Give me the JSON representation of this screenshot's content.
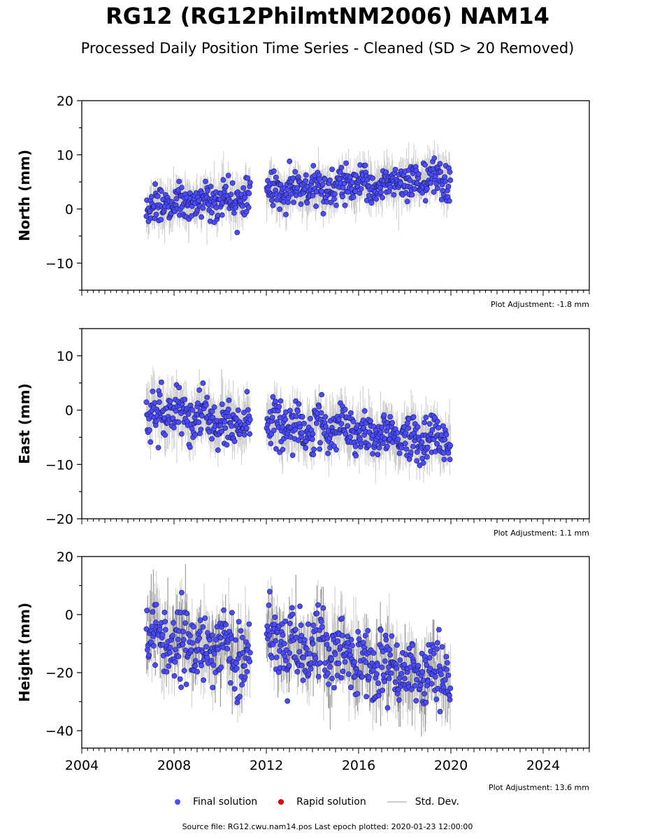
{
  "title": "RG12 (RG12PhilmtNM2006) NAM14",
  "subtitle": "Processed Daily Position Time Series - Cleaned (SD > 20 Removed)",
  "legend": {
    "final": "Final solution",
    "rapid": "Rapid solution",
    "std": "Std. Dev."
  },
  "footer": "Source file: RG12.cwu.nam14.pos  Last epoch plotted: 2020-01-23 12:00:00",
  "colors": {
    "final": "#4b4bff",
    "rapid": "#e00000",
    "std": "#cccccc"
  },
  "chart_data": [
    {
      "type": "scatter",
      "ylabel": "North (mm)",
      "xlim": [
        2004,
        2026
      ],
      "ylim": [
        -15,
        20
      ],
      "x_ticks": [
        "2004",
        "2008",
        "2012",
        "2016",
        "2020",
        "2024"
      ],
      "y_ticks": [
        "20",
        "10",
        "0",
        "−10"
      ],
      "y_tick_values": [
        20,
        10,
        0,
        -10
      ],
      "x_tick_labels_shown": false,
      "adjustment": "Plot Adjustment: -1.8 mm",
      "series": [
        {
          "x": [
            2006.8,
            2007.3,
            2007.8,
            2008.3,
            2008.8,
            2009.3,
            2009.8,
            2010.3,
            2010.8,
            2011.3
          ],
          "y": [
            0.0,
            0.5,
            0.8,
            1.0,
            1.2,
            1.5,
            1.8,
            2.0,
            2.3,
            2.5
          ]
        },
        {
          "x": [
            2012.0,
            2012.5,
            2013.0,
            2013.5,
            2014.0,
            2014.5,
            2015.0,
            2015.5,
            2016.0,
            2016.5,
            2017.0,
            2017.5,
            2018.0,
            2018.5,
            2019.0,
            2019.5,
            2020.0
          ],
          "y": [
            2.8,
            3.0,
            3.2,
            3.4,
            3.6,
            3.8,
            4.0,
            4.2,
            4.3,
            4.5,
            4.6,
            4.8,
            5.0,
            5.2,
            5.3,
            5.5,
            5.6
          ]
        }
      ]
    },
    {
      "type": "scatter",
      "ylabel": "East (mm)",
      "xlim": [
        2004,
        2026
      ],
      "ylim": [
        -20,
        15
      ],
      "x_ticks": [
        "2004",
        "2008",
        "2012",
        "2016",
        "2020",
        "2024"
      ],
      "y_ticks": [
        "10",
        "0",
        "−10",
        "−20"
      ],
      "y_tick_values": [
        10,
        0,
        -10,
        -20
      ],
      "x_tick_labels_shown": false,
      "adjustment": "Plot Adjustment: 1.1 mm",
      "series": [
        {
          "x": [
            2006.8,
            2007.3,
            2007.8,
            2008.3,
            2008.8,
            2009.3,
            2009.8,
            2010.3,
            2010.8,
            2011.3
          ],
          "y": [
            0.0,
            -0.3,
            -0.6,
            -0.9,
            -1.2,
            -1.5,
            -1.8,
            -2.1,
            -2.4,
            -2.7
          ]
        },
        {
          "x": [
            2012.0,
            2012.5,
            2013.0,
            2013.5,
            2014.0,
            2014.5,
            2015.0,
            2015.5,
            2016.0,
            2016.5,
            2017.0,
            2017.5,
            2018.0,
            2018.5,
            2019.0,
            2019.5,
            2020.0
          ],
          "y": [
            -2.5,
            -2.8,
            -3.0,
            -3.2,
            -3.3,
            -3.5,
            -3.6,
            -3.8,
            -4.0,
            -4.2,
            -4.4,
            -4.6,
            -4.8,
            -5.0,
            -5.1,
            -5.3,
            -5.4
          ]
        }
      ]
    },
    {
      "type": "scatter",
      "ylabel": "Height (mm)",
      "xlim": [
        2004,
        2026
      ],
      "ylim": [
        -46,
        20
      ],
      "x_ticks": [
        "2004",
        "2008",
        "2012",
        "2016",
        "2020",
        "2024"
      ],
      "y_ticks": [
        "20",
        "0",
        "−20",
        "−40"
      ],
      "y_tick_values": [
        20,
        0,
        -20,
        -40
      ],
      "x_tick_labels_shown": true,
      "adjustment": "Plot Adjustment: 13.6 mm",
      "series": [
        {
          "x": [
            2006.8,
            2007.3,
            2007.8,
            2008.3,
            2008.8,
            2009.3,
            2009.8,
            2010.3,
            2010.8,
            2011.3
          ],
          "y": [
            -6,
            -8,
            -9,
            -10,
            -11,
            -12,
            -12,
            -13,
            -14,
            -14
          ]
        },
        {
          "x": [
            2012.0,
            2012.5,
            2013.0,
            2013.5,
            2014.0,
            2014.5,
            2015.0,
            2015.5,
            2016.0,
            2016.5,
            2017.0,
            2017.5,
            2018.0,
            2018.5,
            2019.0,
            2019.5,
            2020.0
          ],
          "y": [
            -7,
            -9,
            -10,
            -11,
            -12,
            -13,
            -13,
            -14,
            -16,
            -17,
            -18,
            -18,
            -19,
            -20,
            -20,
            -21,
            -22
          ]
        }
      ]
    }
  ]
}
